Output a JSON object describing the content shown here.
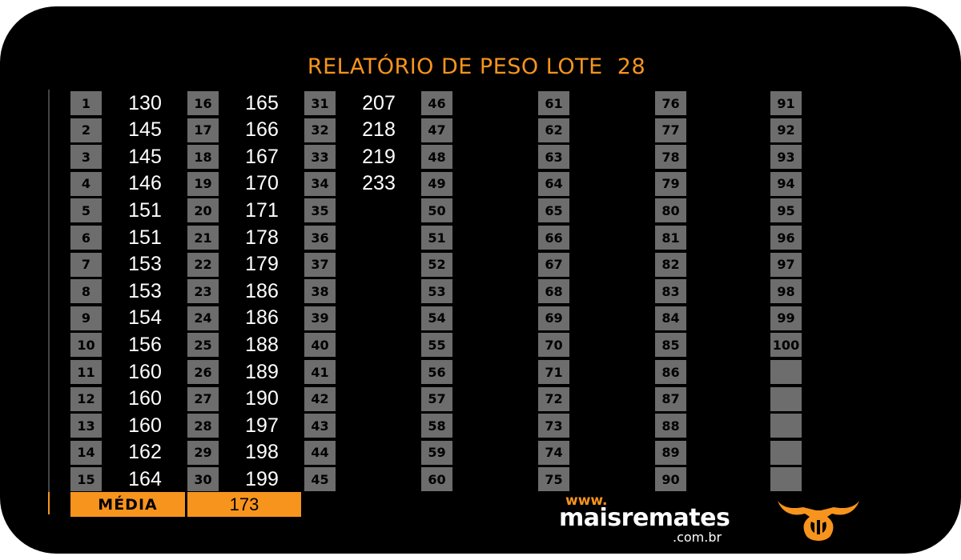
{
  "report": {
    "title": "RELATÓRIO DE PESO LOTE  28",
    "weights": [
      130,
      145,
      145,
      146,
      151,
      151,
      153,
      153,
      154,
      156,
      160,
      160,
      160,
      162,
      164,
      165,
      166,
      167,
      170,
      171,
      178,
      179,
      186,
      186,
      188,
      189,
      190,
      197,
      198,
      199,
      207,
      218,
      219,
      233
    ],
    "slot_count": 100,
    "blank_slots_after": 5,
    "media_label": "MÉDIA",
    "media_value": "173"
  },
  "brand": {
    "www": "www.",
    "name": "maisremates",
    "domain": ".com.br",
    "logo_icon": "bull-horns-icon"
  },
  "colors": {
    "background": "#000000",
    "accent": "#f7941d",
    "badge": "#6d6d6d",
    "text": "#ffffff"
  }
}
